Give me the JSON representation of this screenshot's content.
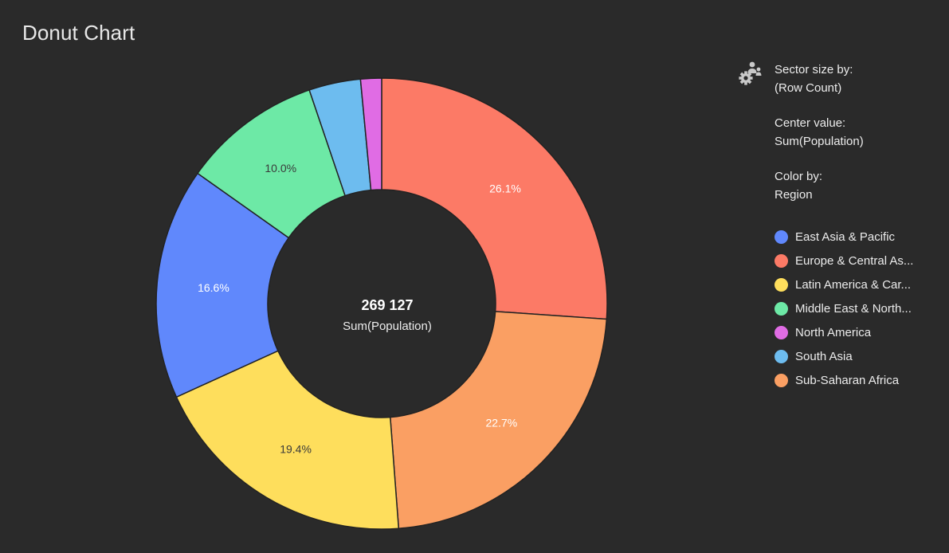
{
  "chart_data": {
    "type": "pie",
    "variant": "donut",
    "title": "Donut Chart",
    "center_value": "269 127",
    "center_label": "Sum(Population)",
    "slices": [
      {
        "name": "Europe & Central Asia",
        "legend_label": "Europe & Central As...",
        "value": 26.1,
        "label": "26.1%",
        "color": "#fc7a66"
      },
      {
        "name": "Sub-Saharan Africa",
        "legend_label": "Sub-Saharan Africa",
        "value": 22.7,
        "label": "22.7%",
        "color": "#fa9f63"
      },
      {
        "name": "Latin America & Caribbean",
        "legend_label": "Latin America & Car...",
        "value": 19.4,
        "label": "19.4%",
        "color": "#fede5c"
      },
      {
        "name": "East Asia & Pacific",
        "legend_label": "East Asia & Pacific",
        "value": 16.6,
        "label": "16.6%",
        "color": "#6088fc"
      },
      {
        "name": "Middle East & North Africa",
        "legend_label": "Middle East & North...",
        "value": 10.0,
        "label": "10.0%",
        "color": "#6de9a6"
      },
      {
        "name": "South Asia",
        "legend_label": "South Asia",
        "value": 3.7,
        "label": "",
        "color": "#6dbcef"
      },
      {
        "name": "North America",
        "legend_label": "North America",
        "value": 1.5,
        "label": "",
        "color": "#e06ce4"
      }
    ],
    "legend": {
      "sector_size_label": "Sector size by:",
      "sector_size_value": "(Row Count)",
      "center_value_label": "Center value:",
      "center_value_value": "Sum(Population)",
      "color_by_label": "Color by:",
      "color_by_value": "Region",
      "order": [
        "East Asia & Pacific",
        "Europe & Central Asia",
        "Latin America & Caribbean",
        "Middle East & North Africa",
        "North America",
        "South Asia",
        "Sub-Saharan Africa"
      ]
    }
  },
  "colors": {
    "background": "#2a2a2a",
    "text": "#ececec",
    "slice_border": "#222222"
  },
  "icons": {
    "legend_settings": "gear-people-icon"
  }
}
